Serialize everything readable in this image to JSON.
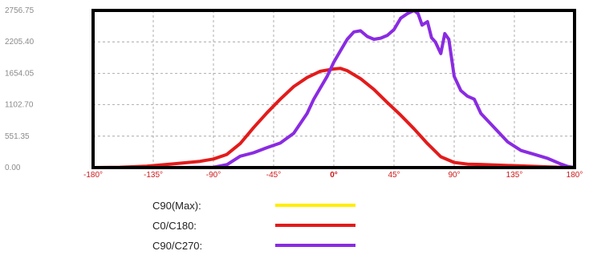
{
  "chart_data": {
    "type": "line",
    "title": "",
    "xlabel": "",
    "ylabel": "",
    "xlim": [
      -180,
      180
    ],
    "ylim": [
      0,
      2756.75
    ],
    "grid": true,
    "legend_position": "bottom",
    "y_ticks": [
      {
        "value": 0,
        "label": "0.00"
      },
      {
        "value": 551.35,
        "label": "551.35"
      },
      {
        "value": 1102.7,
        "label": "1102.70"
      },
      {
        "value": 1654.05,
        "label": "1654.05"
      },
      {
        "value": 2205.4,
        "label": "2205.40"
      },
      {
        "value": 2756.75,
        "label": "2756.75"
      }
    ],
    "x_ticks": [
      {
        "value": -180,
        "label": "-180°"
      },
      {
        "value": -135,
        "label": "-135°"
      },
      {
        "value": -90,
        "label": "-90°"
      },
      {
        "value": -45,
        "label": "-45°"
      },
      {
        "value": 0,
        "label": "0°"
      },
      {
        "value": 45,
        "label": "45°"
      },
      {
        "value": 90,
        "label": "90°"
      },
      {
        "value": 135,
        "label": "135°"
      },
      {
        "value": 180,
        "label": "180°"
      }
    ],
    "series": [
      {
        "name": "C90(Max):",
        "color": "#ffee00",
        "x": [],
        "values": []
      },
      {
        "name": "C0/C180:",
        "color": "#e31b1b",
        "x": [
          -180,
          -160,
          -140,
          -120,
          -100,
          -90,
          -80,
          -70,
          -60,
          -50,
          -40,
          -30,
          -20,
          -10,
          0,
          5,
          10,
          20,
          30,
          40,
          50,
          60,
          70,
          80,
          90,
          100,
          110,
          120,
          140,
          160,
          170,
          180
        ],
        "values": [
          0,
          5,
          25,
          65,
          110,
          150,
          230,
          420,
          700,
          960,
          1200,
          1420,
          1580,
          1690,
          1730,
          1740,
          1700,
          1560,
          1370,
          1140,
          920,
          680,
          420,
          190,
          90,
          60,
          55,
          45,
          30,
          12,
          5,
          0
        ]
      },
      {
        "name": "C90/C270:",
        "color": "#8a2be2",
        "x": [
          -180,
          -120,
          -90,
          -80,
          -70,
          -60,
          -50,
          -40,
          -30,
          -20,
          -15,
          -10,
          -5,
          0,
          5,
          10,
          15,
          20,
          25,
          30,
          35,
          40,
          45,
          50,
          55,
          60,
          63,
          66,
          70,
          73,
          76,
          80,
          83,
          86,
          90,
          95,
          100,
          105,
          110,
          120,
          130,
          140,
          150,
          160,
          170,
          175,
          180
        ],
        "values": [
          0,
          0,
          5,
          50,
          200,
          260,
          350,
          430,
          600,
          950,
          1200,
          1400,
          1600,
          1850,
          2050,
          2250,
          2380,
          2400,
          2300,
          2250,
          2270,
          2320,
          2420,
          2620,
          2700,
          2756,
          2700,
          2500,
          2560,
          2280,
          2200,
          2000,
          2350,
          2250,
          1600,
          1350,
          1250,
          1200,
          950,
          700,
          450,
          300,
          230,
          160,
          60,
          20,
          0
        ]
      }
    ]
  }
}
